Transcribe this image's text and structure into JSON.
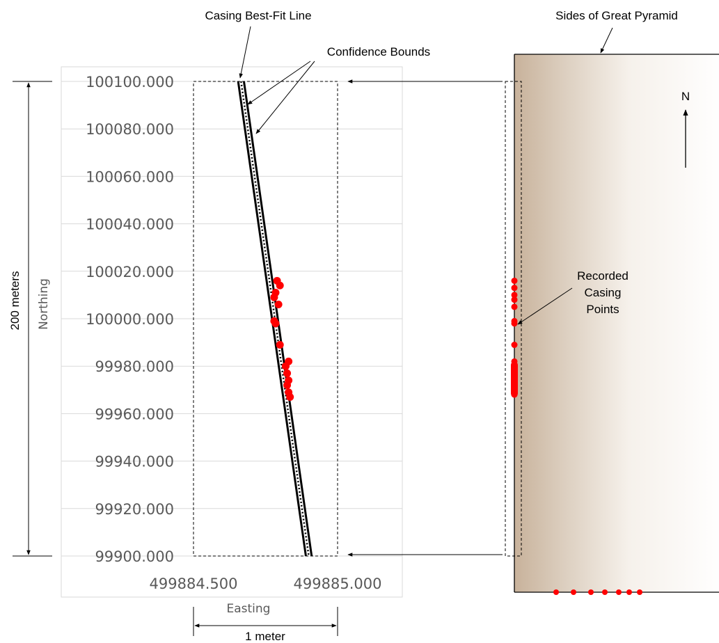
{
  "chart_data": {
    "type": "scatter",
    "xlabel": "Easting",
    "ylabel": "Northing",
    "xlim": [
      499884.5,
      499885.0
    ],
    "ylim": [
      99900,
      100100
    ],
    "x_ticks": [
      "499884.500",
      "499885.000"
    ],
    "y_ticks": [
      "100100.000",
      "100080.000",
      "100060.000",
      "100040.000",
      "100020.000",
      "100000.000",
      "99980.000",
      "99960.000",
      "99940.000",
      "99920.000",
      "99900.000"
    ],
    "best_fit_line": [
      [
        499884.665,
        100100
      ],
      [
        499884.9,
        99900
      ]
    ],
    "confidence_offset": 0.01,
    "points": [
      [
        499884.79,
        100016
      ],
      [
        499884.8,
        100014
      ],
      [
        499884.785,
        100011
      ],
      [
        499884.78,
        100009
      ],
      [
        499884.795,
        100006
      ],
      [
        499884.78,
        99999
      ],
      [
        499884.785,
        99998
      ],
      [
        499884.8,
        99989
      ],
      [
        499884.83,
        99982
      ],
      [
        499884.82,
        99980
      ],
      [
        499884.825,
        99977
      ],
      [
        499884.83,
        99974
      ],
      [
        499884.825,
        99972
      ],
      [
        499884.83,
        99969
      ],
      [
        499884.835,
        99967
      ]
    ]
  },
  "annotations": {
    "best_fit": "Casing Best-Fit Line",
    "confidence": "Confidence Bounds",
    "sides": "Sides of Great Pyramid",
    "north": "N",
    "recorded": [
      "Recorded",
      "Casing",
      "Points"
    ],
    "span_vertical": "200 meters",
    "span_horizontal": "1 meter"
  },
  "pyramid": {
    "points_north": [
      100016,
      100013,
      100010,
      100008,
      100005,
      99999,
      99998,
      99989,
      99982,
      99979,
      99976,
      99973,
      99970,
      99968
    ],
    "bottom_dots": [
      0.06,
      0.085,
      0.11,
      0.13,
      0.15,
      0.165,
      0.18
    ]
  },
  "colors": {
    "point": "#ff0000",
    "line": "#000000",
    "grid": "#d9d9d9",
    "pyramid_edge": "#c8b29b"
  }
}
